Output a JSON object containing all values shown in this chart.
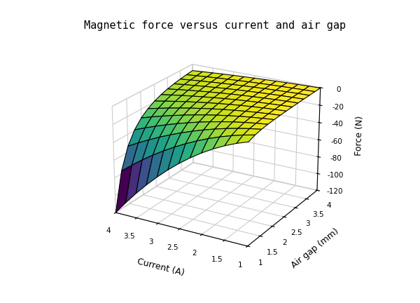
{
  "title": "Magnetic force versus current and air gap",
  "xlabel": "Current (A)",
  "ylabel": "Air gap (mm)",
  "zlabel": "Force (N)",
  "current_range": [
    1,
    4
  ],
  "airgap_range": [
    1,
    4
  ],
  "zlim": [
    -120,
    0
  ],
  "zticks": [
    0,
    -20,
    -40,
    -60,
    -80,
    -100,
    -120
  ],
  "current_ticks": [
    1,
    1.5,
    2,
    2.5,
    3,
    3.5,
    4
  ],
  "airgap_ticks": [
    1,
    1.5,
    2,
    2.5,
    3,
    3.5,
    4
  ],
  "background_color": "#ffffff",
  "title_fontsize": 11,
  "axis_fontsize": 9,
  "colormap": "viridis",
  "K": 7.5,
  "n_points": 13,
  "elev": 22,
  "azim": -60
}
